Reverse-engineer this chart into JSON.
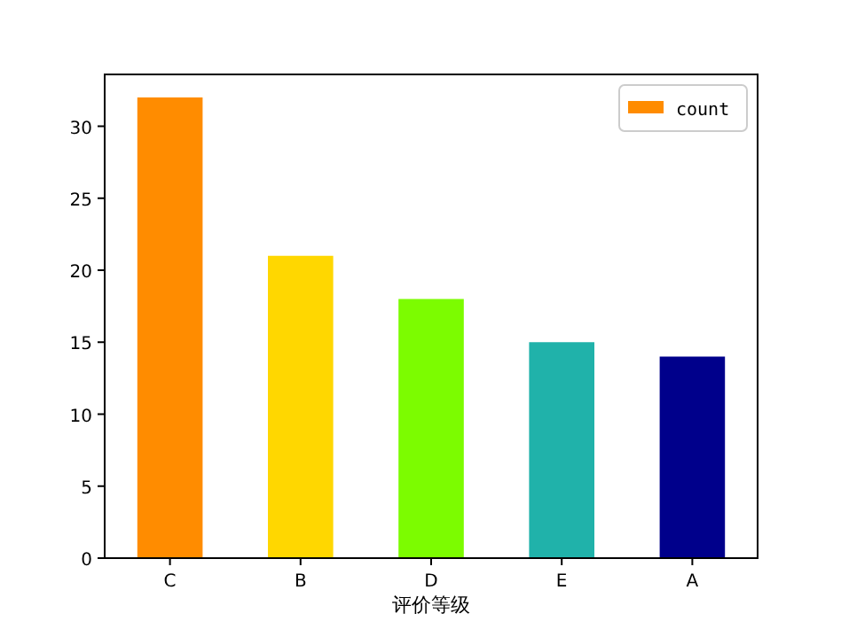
{
  "chart_data": {
    "type": "bar",
    "xlabel": "评价等级",
    "categories": [
      "C",
      "B",
      "D",
      "E",
      "A"
    ],
    "series": [
      {
        "name": "count",
        "color": "#ff8c00",
        "colors": [
          "#ff8c00",
          "#ffd700",
          "#7cfc00",
          "#20b2aa",
          "#00008b"
        ],
        "values": [
          32,
          21,
          18,
          15,
          14
        ]
      }
    ],
    "ylim": [
      0,
      33.6
    ],
    "yticks": [
      0,
      5,
      10,
      15,
      20,
      25,
      30
    ],
    "legend": "top right",
    "grid": false
  }
}
